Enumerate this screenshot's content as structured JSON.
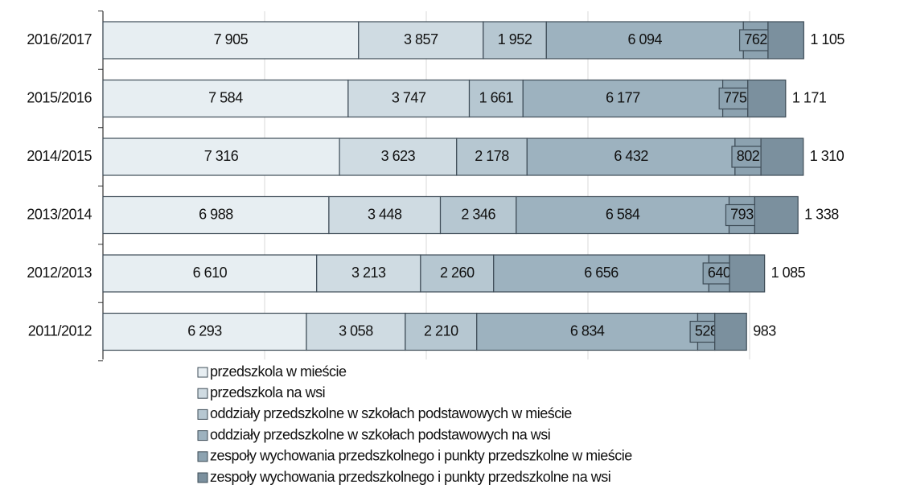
{
  "chart_data": {
    "type": "stacked_barh",
    "categories": [
      "2016/2017",
      "2015/2016",
      "2014/2015",
      "2013/2014",
      "2012/2013",
      "2011/2012"
    ],
    "series": [
      {
        "name": "przedszkola w mieście",
        "color": "#e7eef2",
        "values": [
          7905,
          7584,
          7316,
          6988,
          6610,
          6293
        ],
        "value_labels": [
          "7 905",
          "7 584",
          "7 316",
          "6 988",
          "6 610",
          "6 293"
        ]
      },
      {
        "name": "przedszkola na wsi",
        "color": "#cfdbe2",
        "values": [
          3857,
          3747,
          3623,
          3448,
          3213,
          3058
        ],
        "value_labels": [
          "3 857",
          "3 747",
          "3 623",
          "3 448",
          "3 213",
          "3 058"
        ]
      },
      {
        "name": "oddziały przedszkolne w szkołach podstawowych w mieście",
        "color": "#b6c7d1",
        "values": [
          1952,
          1661,
          2178,
          2346,
          2260,
          2210
        ],
        "value_labels": [
          "1 952",
          "1 661",
          "2 178",
          "2 346",
          "2 260",
          "2 210"
        ]
      },
      {
        "name": "oddziały przedszkolne w szkołach podstawowych na wsi",
        "color": "#9db2bf",
        "values": [
          6094,
          6177,
          6432,
          6584,
          6656,
          6834
        ],
        "value_labels": [
          "6 094",
          "6 177",
          "6 432",
          "6 584",
          "6 656",
          "6 834"
        ]
      },
      {
        "name": "zespoły wychowania przedszkolnego i punkty przedszkolne w mieście",
        "color": "#8ca2b0",
        "values": [
          762,
          775,
          802,
          793,
          640,
          528
        ]
      },
      {
        "name": "zespoły wychowania przedszkolnego i punkty przedszkolne na wsi",
        "color": "#7b909e",
        "values": [
          1105,
          1171,
          1310,
          1338,
          1085,
          983
        ],
        "value_labels": [
          "1 105",
          "1 171",
          "1 310",
          "1 338",
          "1 085",
          "983"
        ]
      }
    ],
    "xlim": [
      0,
      22000
    ],
    "xticks": [
      0,
      5000,
      10000,
      15000,
      20000
    ],
    "grid": true
  }
}
